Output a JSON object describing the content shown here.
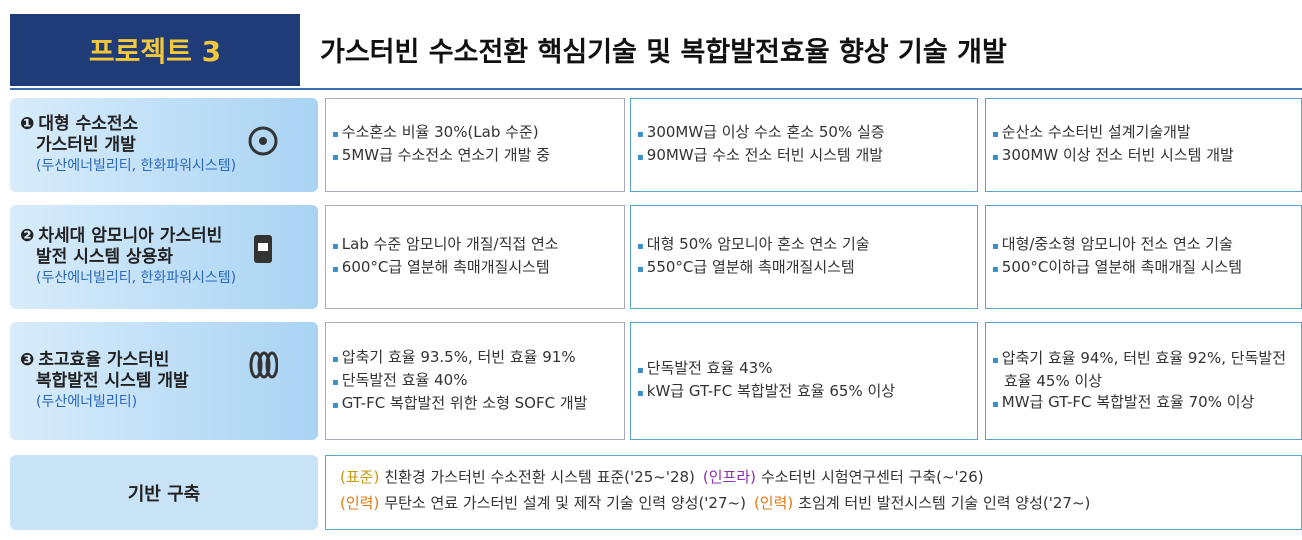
{
  "header": {
    "badge": "프로젝트 3",
    "title": "가스터빈 수소전환 핵심기술 및 복합발전효율 향상 기술 개발"
  },
  "rows": [
    {
      "number": "❶",
      "title_lines": [
        "대형 수소전소",
        "가스터빈 개발"
      ],
      "companies": "(두산에너빌리티, 한화파워시스템)",
      "cells": [
        [
          "수소혼소 비율 30%(Lab 수준)",
          "5MW급 수소전소 연소기 개발 중"
        ],
        [
          "300MW급 이상 수소 혼소 50% 실증",
          "90MW급 수소 전소 터빈 시스템 개발"
        ],
        [
          "순산소 수소터빈 설계기술개발",
          "300MW 이상 전소 터빈 시스템 개발"
        ]
      ]
    },
    {
      "number": "❷",
      "title_lines": [
        "차세대 암모니아 가스터빈",
        "발전 시스템 상용화"
      ],
      "companies": "(두산에너빌리티, 한화파워시스템)",
      "cells": [
        [
          "Lab 수준 암모니아 개질/직접 연소",
          "600°C급 열분해 촉매개질시스템"
        ],
        [
          "대형 50% 암모니아 혼소 연소 기술",
          "550°C급 열분해 촉매개질시스템"
        ],
        [
          "대형/중소형 암모니아 전소 연소 기술",
          "500°C이하급 열분해 촉매개질 시스템"
        ]
      ]
    },
    {
      "number": "❸",
      "title_lines": [
        "초고효율 가스터빈",
        "복합발전 시스템 개발"
      ],
      "companies": "(두산에너빌리티)",
      "cells": [
        [
          "압축기 효율 93.5%, 터빈 효율 91%",
          "단독발전 효율 40%",
          "GT-FC 복합발전 위한 소형 SOFC 개발"
        ],
        [
          "단독발전 효율 43%",
          "kW급 GT-FC 복합발전 효율 65% 이상"
        ],
        [
          "압축기 효율 94%, 터빈 효율 92%, 단독발전 효율 45% 이상",
          "MW급 GT-FC 복합발전 효율 70% 이상"
        ]
      ]
    }
  ],
  "foundation": {
    "label": "기반 구축",
    "lines": [
      [
        {
          "tag": "(표준)",
          "text": "친환경 가스터빈 수소전환 시스템  표준('25~'28)"
        },
        {
          "tag": "(인프라)",
          "text": "수소터빈 시험연구센터 구축(~'26)"
        }
      ],
      [
        {
          "tag": "(인력)",
          "text": "무탄소 연료 가스터빈 설계 및 제작 기술 인력 양성('27~)"
        },
        {
          "tag": "(인력)",
          "text": "초임계 터빈 발전시스템 기술 인력 양성('27~)"
        }
      ]
    ]
  }
}
